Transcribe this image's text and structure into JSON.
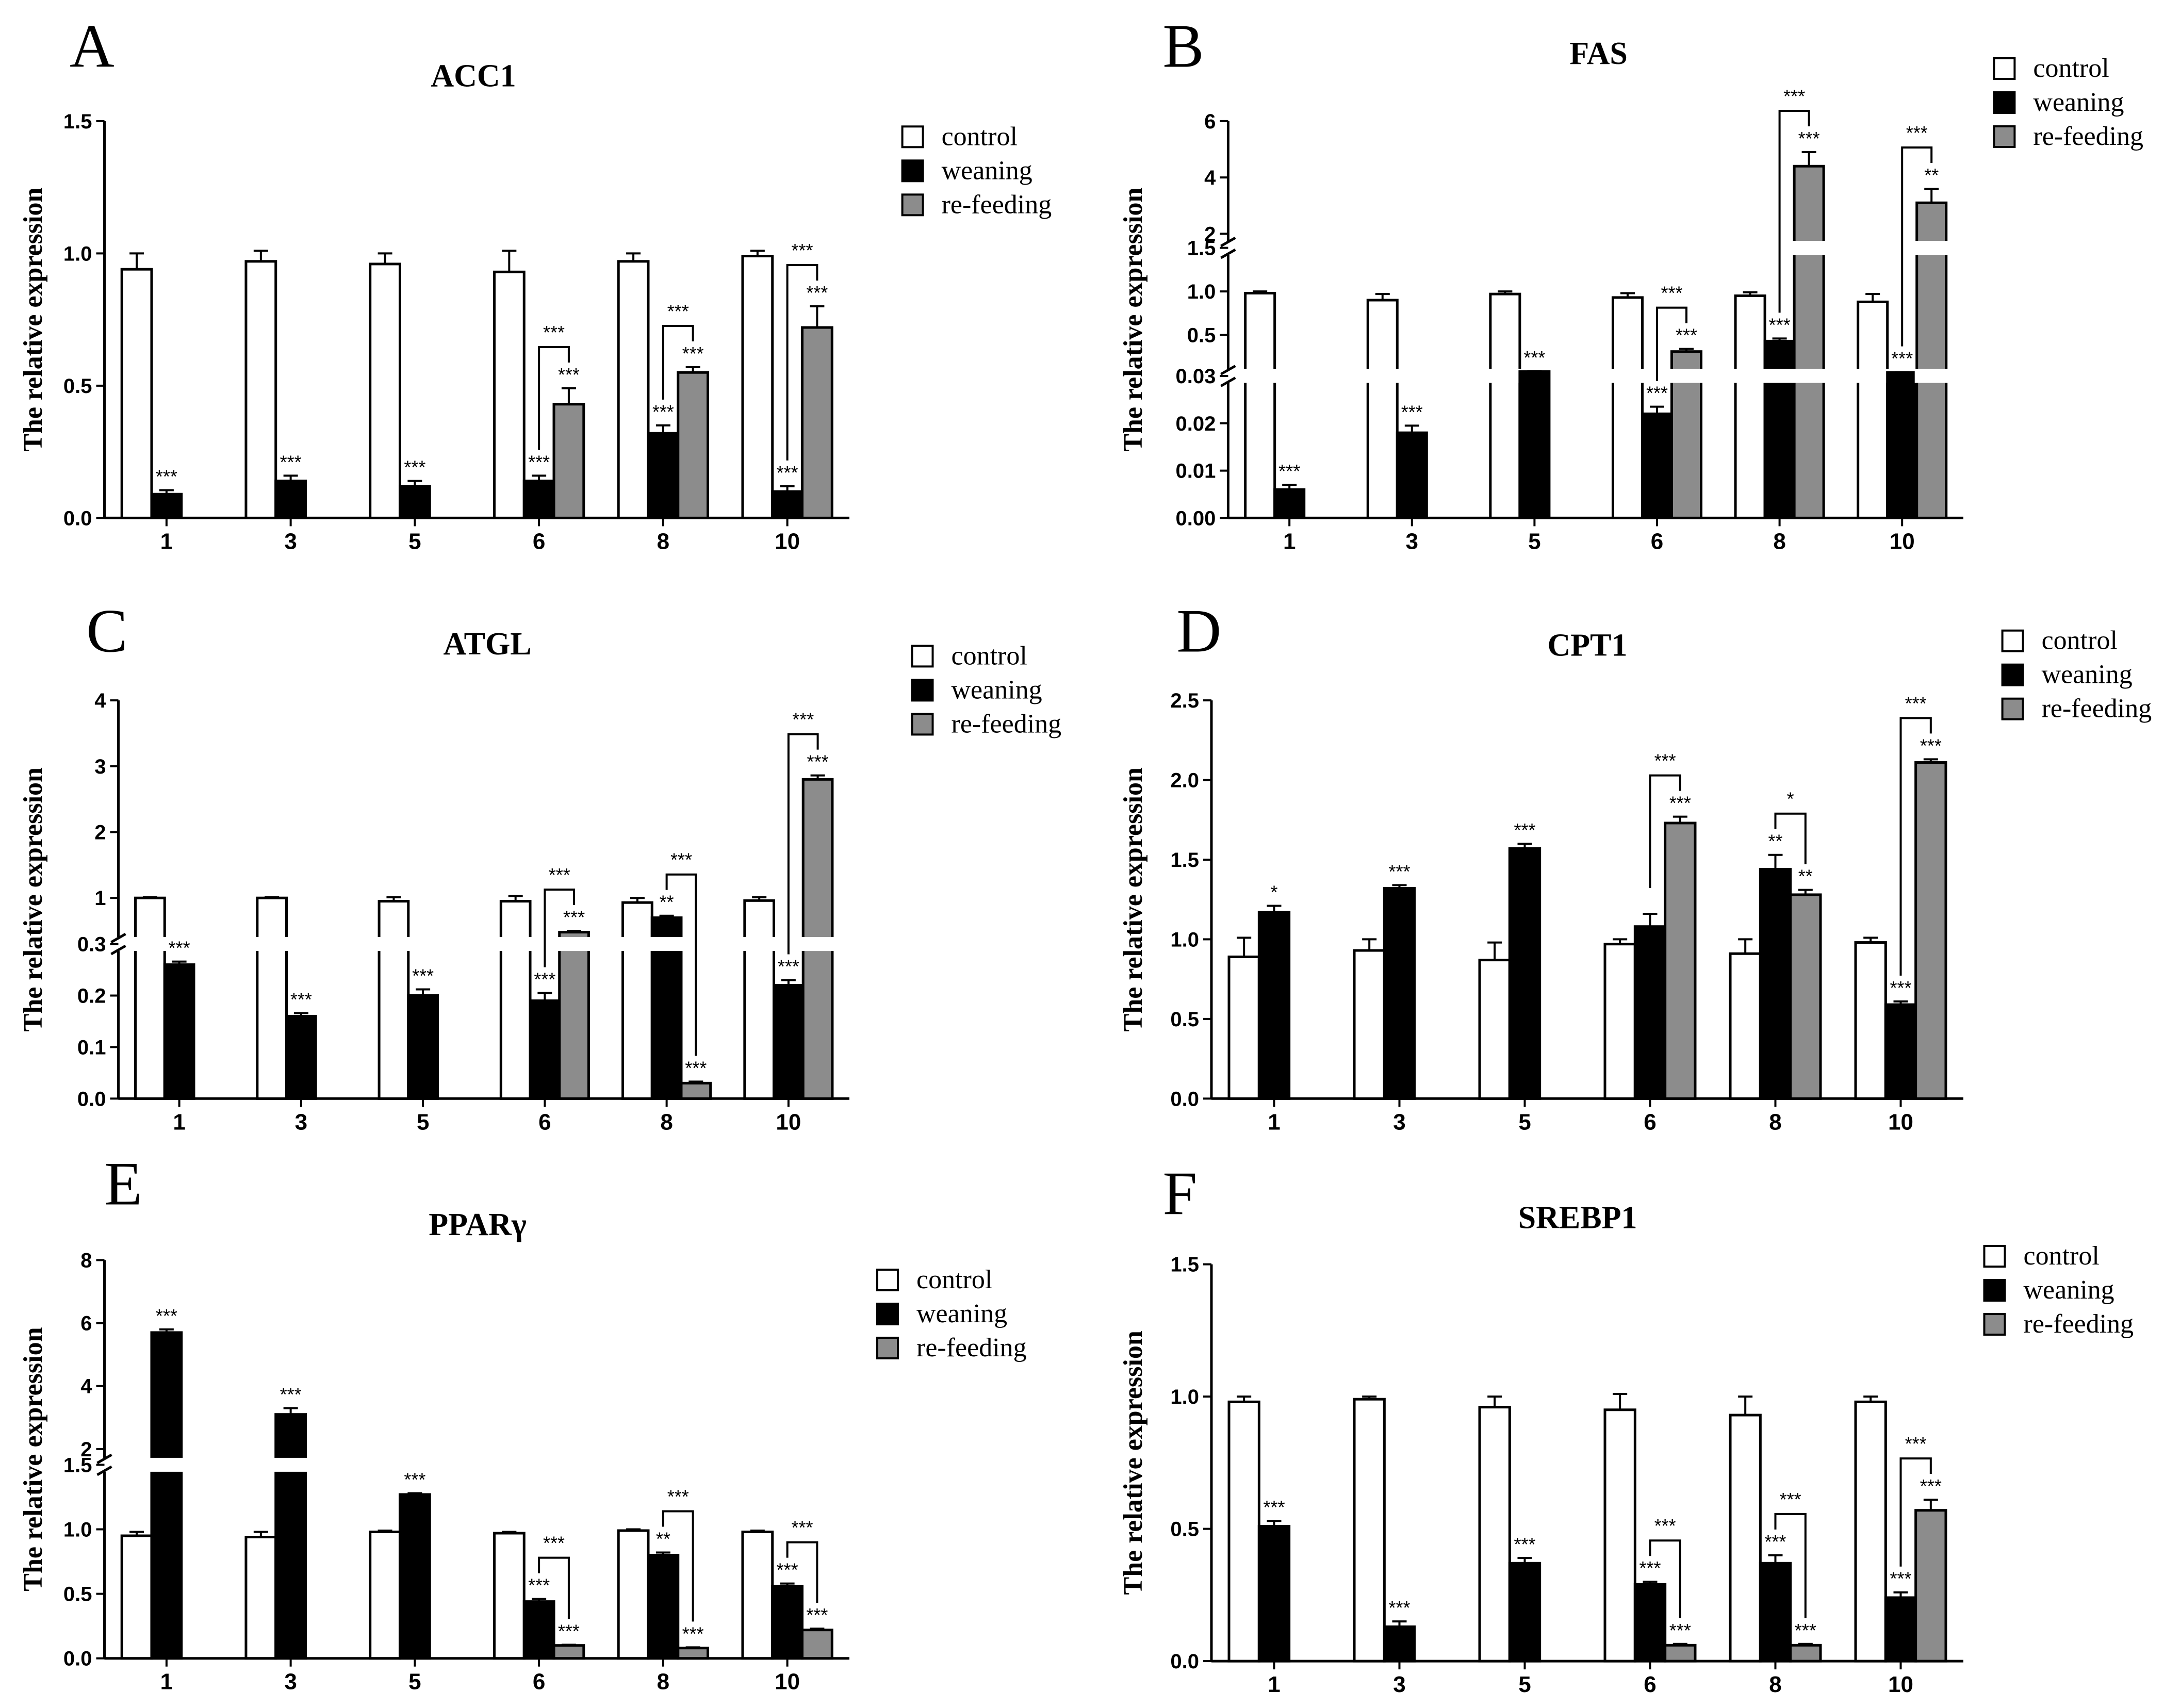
{
  "y_label": "The relative expression",
  "legend": [
    {
      "key": "control",
      "label": "control",
      "color": "#ffffff"
    },
    {
      "key": "weaning",
      "label": "weaning",
      "color": "#000000"
    },
    {
      "key": "refeeding",
      "label": "re-feeding",
      "color": "#8c8c8c"
    }
  ],
  "chart_data": [
    {
      "letter": "A",
      "title": "ACC1",
      "type": "bar",
      "categories": [
        "1",
        "3",
        "5",
        "6",
        "8",
        "10"
      ],
      "yticks": [
        "0.0",
        "0.5",
        "1.0",
        "1.5"
      ],
      "ylim": [
        0,
        1.5
      ],
      "series": [
        {
          "name": "control",
          "values": [
            0.94,
            0.97,
            0.96,
            0.93,
            0.97,
            0.99
          ],
          "errors": [
            0.06,
            0.04,
            0.04,
            0.08,
            0.03,
            0.02
          ]
        },
        {
          "name": "weaning",
          "values": [
            0.09,
            0.14,
            0.12,
            0.14,
            0.32,
            0.1
          ],
          "errors": [
            0.015,
            0.02,
            0.02,
            0.02,
            0.03,
            0.02
          ]
        },
        {
          "name": "re-feeding",
          "values": [
            null,
            null,
            null,
            0.43,
            0.55,
            0.72
          ],
          "errors": [
            null,
            null,
            null,
            0.06,
            0.02,
            0.08
          ]
        }
      ],
      "sig_weaning": [
        "***",
        "***",
        "***",
        "***",
        "***",
        "***"
      ],
      "sig_refeeding": [
        "",
        "",
        "",
        "***",
        "***",
        "***"
      ],
      "sig_bracket": [
        "",
        "",
        "",
        "***",
        "***",
        "***"
      ]
    },
    {
      "letter": "B",
      "title": "FAS",
      "type": "bar",
      "categories": [
        "1",
        "3",
        "5",
        "6",
        "8",
        "10"
      ],
      "yticks": [
        "0.00",
        "0.01",
        "0.02",
        "0.03",
        "0.5",
        "1.0",
        "1.5",
        "2",
        "4",
        "6"
      ],
      "axis_segments": [
        [
          0,
          0.03
        ],
        [
          0.03,
          1.5
        ],
        [
          1.5,
          6
        ]
      ],
      "series": [
        {
          "name": "control",
          "values": [
            0.98,
            0.9,
            0.97,
            0.93,
            0.95,
            0.88
          ],
          "errors": [
            0.02,
            0.07,
            0.03,
            0.05,
            0.04,
            0.09
          ]
        },
        {
          "name": "weaning",
          "values": [
            0.006,
            0.018,
            0.08,
            0.022,
            0.43,
            0.07
          ],
          "errors": [
            0.001,
            0.0015,
            0.004,
            0.0015,
            0.03,
            0.004
          ]
        },
        {
          "name": "re-feeding",
          "values": [
            null,
            null,
            null,
            0.31,
            4.4,
            3.1
          ],
          "errors": [
            null,
            null,
            null,
            0.03,
            0.5,
            0.5
          ]
        }
      ],
      "sig_weaning": [
        "***",
        "***",
        "***",
        "***",
        "***",
        "***"
      ],
      "sig_refeeding": [
        "",
        "",
        "",
        "***",
        "***",
        "**"
      ],
      "sig_bracket": [
        "",
        "",
        "",
        "***",
        "***",
        "***"
      ]
    },
    {
      "letter": "C",
      "title": "ATGL",
      "type": "bar",
      "categories": [
        "1",
        "3",
        "5",
        "6",
        "8",
        "10"
      ],
      "yticks": [
        "0.0",
        "0.1",
        "0.2",
        "0.3",
        "1",
        "2",
        "3",
        "4"
      ],
      "axis_segments": [
        [
          0,
          0.3
        ],
        [
          0.3,
          4
        ]
      ],
      "series": [
        {
          "name": "control",
          "values": [
            1.0,
            1.0,
            0.95,
            0.95,
            0.93,
            0.96
          ],
          "errors": [
            0.01,
            0.01,
            0.06,
            0.08,
            0.07,
            0.05
          ]
        },
        {
          "name": "weaning",
          "values": [
            0.26,
            0.16,
            0.2,
            0.19,
            0.7,
            0.22
          ],
          "errors": [
            0.006,
            0.006,
            0.012,
            0.015,
            0.03,
            0.01
          ]
        },
        {
          "name": "re-feeding",
          "values": [
            null,
            null,
            null,
            0.48,
            0.03,
            2.8
          ],
          "errors": [
            null,
            null,
            null,
            0.02,
            0.003,
            0.06
          ]
        }
      ],
      "sig_weaning": [
        "***",
        "***",
        "***",
        "***",
        "**",
        "***"
      ],
      "sig_refeeding": [
        "",
        "",
        "",
        "***",
        "***",
        "***"
      ],
      "sig_bracket": [
        "",
        "",
        "",
        "***",
        "***",
        "***"
      ]
    },
    {
      "letter": "D",
      "title": "CPT1",
      "type": "bar",
      "categories": [
        "1",
        "3",
        "5",
        "6",
        "8",
        "10"
      ],
      "yticks": [
        "0.0",
        "0.5",
        "1.0",
        "1.5",
        "2.0",
        "2.5"
      ],
      "ylim": [
        0,
        2.5
      ],
      "series": [
        {
          "name": "control",
          "values": [
            0.89,
            0.93,
            0.87,
            0.97,
            0.91,
            0.98
          ],
          "errors": [
            0.12,
            0.07,
            0.11,
            0.03,
            0.09,
            0.03
          ]
        },
        {
          "name": "weaning",
          "values": [
            1.17,
            1.32,
            1.57,
            1.08,
            1.44,
            0.59
          ],
          "errors": [
            0.04,
            0.02,
            0.03,
            0.08,
            0.09,
            0.02
          ]
        },
        {
          "name": "re-feeding",
          "values": [
            null,
            null,
            null,
            1.73,
            1.28,
            2.11
          ],
          "errors": [
            null,
            null,
            null,
            0.04,
            0.03,
            0.02
          ]
        }
      ],
      "sig_weaning": [
        "*",
        "***",
        "***",
        "",
        "**",
        "***"
      ],
      "sig_refeeding": [
        "",
        "",
        "",
        "***",
        "**",
        "***"
      ],
      "sig_bracket": [
        "",
        "",
        "",
        "***",
        "*",
        "***"
      ]
    },
    {
      "letter": "E",
      "title": "PPARγ",
      "type": "bar",
      "categories": [
        "1",
        "3",
        "5",
        "6",
        "8",
        "10"
      ],
      "yticks": [
        "0.0",
        "0.5",
        "1.0",
        "1.5",
        "2",
        "4",
        "6",
        "8"
      ],
      "axis_segments": [
        [
          0,
          1.5
        ],
        [
          1.5,
          8
        ]
      ],
      "series": [
        {
          "name": "control",
          "values": [
            0.95,
            0.94,
            0.98,
            0.97,
            0.99,
            0.98
          ],
          "errors": [
            0.03,
            0.04,
            0.01,
            0.01,
            0.01,
            0.01
          ]
        },
        {
          "name": "weaning",
          "values": [
            5.7,
            3.1,
            1.27,
            0.44,
            0.8,
            0.56
          ],
          "errors": [
            0.1,
            0.2,
            0.01,
            0.02,
            0.02,
            0.02
          ]
        },
        {
          "name": "re-feeding",
          "values": [
            null,
            null,
            null,
            0.1,
            0.08,
            0.22
          ],
          "errors": [
            null,
            null,
            null,
            0.005,
            0.005,
            0.01
          ]
        }
      ],
      "sig_weaning": [
        "***",
        "***",
        "***",
        "***",
        "**",
        "***"
      ],
      "sig_refeeding": [
        "",
        "",
        "",
        "***",
        "***",
        "***"
      ],
      "sig_bracket": [
        "",
        "",
        "",
        "***",
        "***",
        "***"
      ]
    },
    {
      "letter": "F",
      "title": "SREBP1",
      "type": "bar",
      "categories": [
        "1",
        "3",
        "5",
        "6",
        "8",
        "10"
      ],
      "yticks": [
        "0.0",
        "0.5",
        "1.0",
        "1.5"
      ],
      "ylim": [
        0,
        1.5
      ],
      "series": [
        {
          "name": "control",
          "values": [
            0.98,
            0.99,
            0.96,
            0.95,
            0.93,
            0.98
          ],
          "errors": [
            0.02,
            0.01,
            0.04,
            0.06,
            0.07,
            0.02
          ]
        },
        {
          "name": "weaning",
          "values": [
            0.51,
            0.13,
            0.37,
            0.29,
            0.37,
            0.24
          ],
          "errors": [
            0.02,
            0.02,
            0.02,
            0.01,
            0.03,
            0.02
          ]
        },
        {
          "name": "re-feeding",
          "values": [
            null,
            null,
            null,
            0.06,
            0.06,
            0.57
          ],
          "errors": [
            null,
            null,
            null,
            0.005,
            0.005,
            0.04
          ]
        }
      ],
      "sig_weaning": [
        "***",
        "***",
        "***",
        "***",
        "***",
        "***"
      ],
      "sig_refeeding": [
        "",
        "",
        "",
        "***",
        "***",
        "***"
      ],
      "sig_bracket": [
        "",
        "",
        "",
        "***",
        "***",
        "***"
      ]
    }
  ]
}
